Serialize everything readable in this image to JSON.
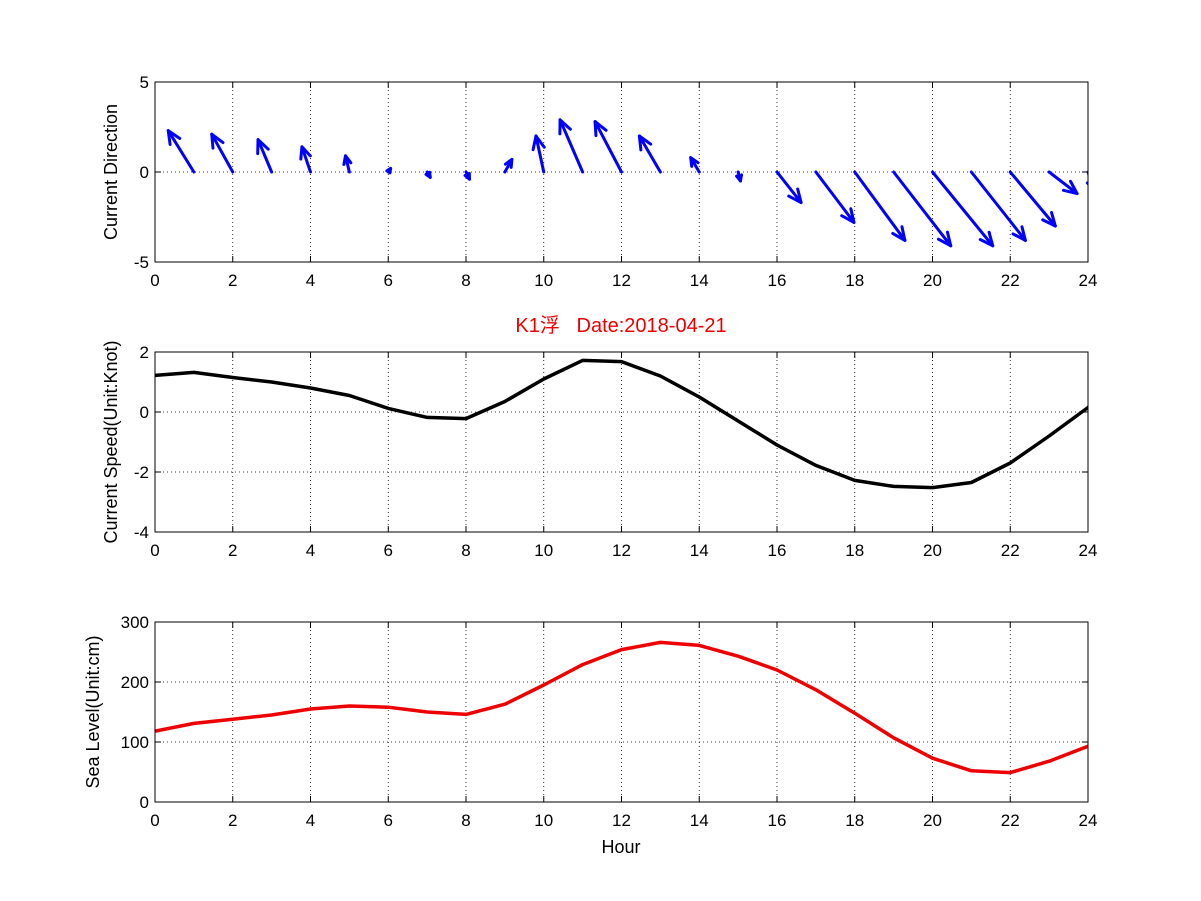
{
  "colors": {
    "direction": "#0000ff",
    "speed": "#000000",
    "level": "#ee0000",
    "title": "#ee0000"
  },
  "title": "K1浮   Date:2018-04-21",
  "chart_data": [
    {
      "type": "quiver",
      "ylabel": "Current Direction",
      "xlabel": "",
      "xlim": [
        0,
        24
      ],
      "ylim": [
        -5,
        5
      ],
      "xticks": [
        "0",
        "2",
        "4",
        "6",
        "8",
        "10",
        "12",
        "14",
        "16",
        "18",
        "20",
        "22",
        "24"
      ],
      "yticks": [
        "5",
        "0",
        "-5"
      ],
      "grid": true,
      "x": [
        1,
        2,
        3,
        4,
        5,
        6,
        7,
        8,
        9,
        10,
        11,
        12,
        13,
        14,
        15,
        16,
        17,
        18,
        19,
        20,
        21,
        22,
        23,
        24
      ],
      "u": [
        -0.66,
        -0.54,
        -0.35,
        -0.22,
        -0.1,
        0.06,
        0.08,
        0.09,
        0.18,
        -0.2,
        -0.58,
        -0.68,
        -0.54,
        -0.22,
        0.06,
        0.62,
        0.98,
        1.29,
        1.47,
        1.55,
        1.39,
        1.16,
        0.72,
        0.15
      ],
      "v": [
        2.3,
        2.1,
        1.8,
        1.4,
        0.9,
        0.2,
        -0.3,
        -0.4,
        0.7,
        2.0,
        2.9,
        2.8,
        2.0,
        0.8,
        -0.5,
        -1.7,
        -2.8,
        -3.8,
        -4.1,
        -4.1,
        -3.8,
        -3.0,
        -1.2,
        -1.0
      ]
    },
    {
      "type": "line",
      "ylabel": "Current Speed(Unit:Knot)",
      "xlabel": "",
      "xlim": [
        0,
        24
      ],
      "ylim": [
        -4,
        2
      ],
      "xticks": [
        "0",
        "2",
        "4",
        "6",
        "8",
        "10",
        "12",
        "14",
        "16",
        "18",
        "20",
        "22",
        "24"
      ],
      "yticks": [
        "2",
        "0",
        "-2",
        "-4"
      ],
      "grid": true,
      "x": [
        0,
        1,
        2,
        3,
        4,
        5,
        6,
        7,
        8,
        9,
        10,
        11,
        12,
        13,
        14,
        15,
        16,
        17,
        18,
        19,
        20,
        21,
        22,
        23,
        24
      ],
      "y": [
        1.22,
        1.32,
        1.15,
        1.0,
        0.8,
        0.55,
        0.12,
        -0.18,
        -0.22,
        0.35,
        1.1,
        1.72,
        1.68,
        1.2,
        0.5,
        -0.3,
        -1.1,
        -1.78,
        -2.28,
        -2.48,
        -2.52,
        -2.35,
        -1.7,
        -0.8,
        0.15
      ]
    },
    {
      "type": "line",
      "ylabel": "Sea Level(Unit:cm)",
      "xlabel": "Hour",
      "xlim": [
        0,
        24
      ],
      "ylim": [
        0,
        300
      ],
      "xticks": [
        "0",
        "2",
        "4",
        "6",
        "8",
        "10",
        "12",
        "14",
        "16",
        "18",
        "20",
        "22",
        "24"
      ],
      "yticks": [
        "300",
        "200",
        "100",
        "0"
      ],
      "grid": true,
      "x": [
        0,
        1,
        2,
        3,
        4,
        5,
        6,
        7,
        8,
        9,
        10,
        11,
        12,
        13,
        14,
        15,
        16,
        17,
        18,
        19,
        20,
        21,
        22,
        23,
        24
      ],
      "y": [
        118,
        131,
        138,
        145,
        155,
        160,
        158,
        150,
        146,
        163,
        195,
        229,
        254,
        266,
        261,
        243,
        220,
        187,
        148,
        107,
        73,
        52,
        49,
        68,
        93
      ]
    }
  ]
}
